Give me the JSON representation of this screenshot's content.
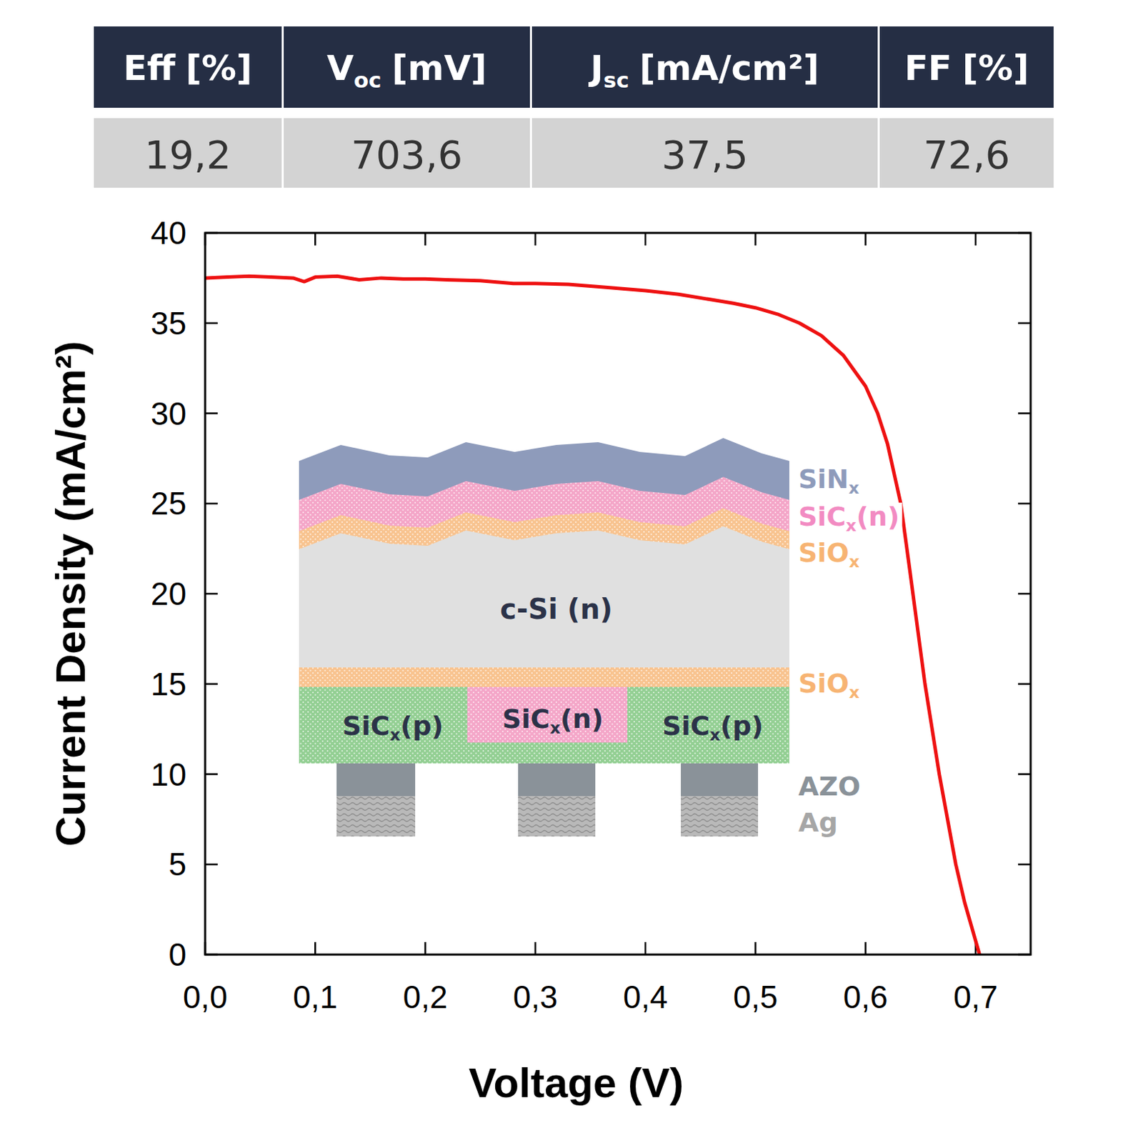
{
  "table": {
    "headers": [
      {
        "base": "Eff",
        "unit": "[%]"
      },
      {
        "base": "V",
        "sub": "oc",
        "unit": "[mV]"
      },
      {
        "base": "J",
        "sub": "sc",
        "unit": "[mA/cm²]"
      },
      {
        "base": "FF",
        "unit": "[%]"
      }
    ],
    "rows": [
      [
        "19,2",
        "703,6",
        "37,5",
        "72,6"
      ]
    ]
  },
  "chart_data": {
    "type": "line",
    "x_label": "Voltage (V)",
    "y_label": "Current Density (mA/cm²)",
    "color": "#ee1111",
    "x": [
      0,
      0.02,
      0.04,
      0.06,
      0.08,
      0.09,
      0.1,
      0.12,
      0.14,
      0.16,
      0.18,
      0.2,
      0.22,
      0.25,
      0.28,
      0.3,
      0.33,
      0.36,
      0.4,
      0.43,
      0.46,
      0.48,
      0.5,
      0.52,
      0.54,
      0.56,
      0.58,
      0.6,
      0.611,
      0.62,
      0.632,
      0.64,
      0.654,
      0.667,
      0.682,
      0.69,
      0.7036
    ],
    "values": [
      37.5,
      37.55,
      37.6,
      37.55,
      37.5,
      37.3,
      37.55,
      37.6,
      37.4,
      37.5,
      37.45,
      37.45,
      37.4,
      37.35,
      37.2,
      37.2,
      37.15,
      37.0,
      36.8,
      36.6,
      36.3,
      36.1,
      35.85,
      35.5,
      35.0,
      34.3,
      33.2,
      31.5,
      30,
      28.3,
      25,
      21.4,
      15,
      10,
      5,
      2.9,
      0
    ],
    "xlim": [
      0,
      0.75
    ],
    "ylim": [
      0,
      40
    ],
    "xticks": [
      {
        "value": 0,
        "label": "0,0"
      },
      {
        "value": 0.1,
        "label": "0,1"
      },
      {
        "value": 0.2,
        "label": "0,2"
      },
      {
        "value": 0.3,
        "label": "0,3"
      },
      {
        "value": 0.4,
        "label": "0,4"
      },
      {
        "value": 0.5,
        "label": "0,5"
      },
      {
        "value": 0.6,
        "label": "0,6"
      },
      {
        "value": 0.7,
        "label": "0,7"
      }
    ],
    "yticks": [
      0,
      5,
      10,
      15,
      20,
      25,
      30,
      35,
      40
    ],
    "grid": false
  },
  "inset": {
    "side_labels": [
      {
        "base": "SiN",
        "sub": "x"
      },
      {
        "base": "SiC",
        "sub": "x",
        "suffix": "(n)"
      },
      {
        "base": "SiO",
        "sub": "x"
      },
      {
        "base": "SiO",
        "sub": "x"
      },
      {
        "base": "AZO"
      },
      {
        "base": "Ag"
      }
    ],
    "substrate": "c-Si (n)",
    "rear_labels": [
      {
        "base": "SiC",
        "sub": "x",
        "suffix": "(p)"
      },
      {
        "base": "SiC",
        "sub": "x",
        "suffix": "(n)"
      },
      {
        "base": "SiC",
        "sub": "x",
        "suffix": "(p)"
      }
    ]
  }
}
